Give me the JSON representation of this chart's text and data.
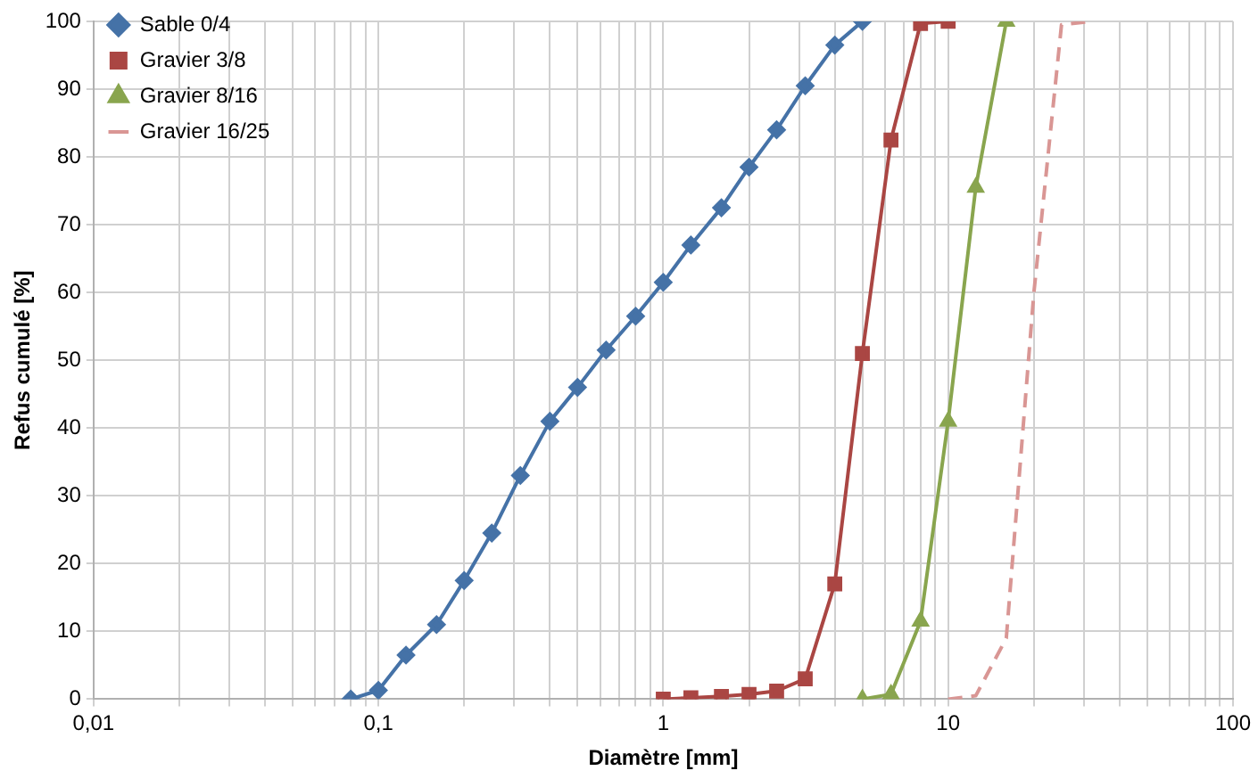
{
  "chart_data": {
    "type": "line",
    "xlabel": "Diamètre [mm]",
    "ylabel": "Refus cumulé [%]",
    "log": "x",
    "grid": true,
    "legend": "top left",
    "xlim": [
      0.01,
      100
    ],
    "ylim": [
      0,
      100
    ],
    "xticks": [
      {
        "value": 0.01,
        "label": "0,01"
      },
      {
        "value": 0.02,
        "label": null
      },
      {
        "value": 0.03,
        "label": null
      },
      {
        "value": 0.04,
        "label": null
      },
      {
        "value": 0.05,
        "label": null
      },
      {
        "value": 0.06,
        "label": null
      },
      {
        "value": 0.07,
        "label": null
      },
      {
        "value": 0.08,
        "label": null
      },
      {
        "value": 0.09,
        "label": null
      },
      {
        "value": 0.1,
        "label": "0,1"
      },
      {
        "value": 0.2,
        "label": null
      },
      {
        "value": 0.3,
        "label": null
      },
      {
        "value": 0.4,
        "label": null
      },
      {
        "value": 0.5,
        "label": null
      },
      {
        "value": 0.6,
        "label": null
      },
      {
        "value": 0.7,
        "label": null
      },
      {
        "value": 0.8,
        "label": null
      },
      {
        "value": 0.9,
        "label": null
      },
      1,
      {
        "value": 2,
        "label": null
      },
      {
        "value": 3,
        "label": null
      },
      {
        "value": 4,
        "label": null
      },
      {
        "value": 5,
        "label": null
      },
      {
        "value": 6,
        "label": null
      },
      {
        "value": 7,
        "label": null
      },
      {
        "value": 8,
        "label": null
      },
      {
        "value": 9,
        "label": null
      },
      10,
      {
        "value": 20,
        "label": null
      },
      {
        "value": 30,
        "label": null
      },
      {
        "value": 40,
        "label": null
      },
      {
        "value": 50,
        "label": null
      },
      {
        "value": 60,
        "label": null
      },
      {
        "value": 70,
        "label": null
      },
      {
        "value": 80,
        "label": null
      },
      {
        "value": 90,
        "label": null
      },
      100
    ],
    "yticks": [
      0,
      10,
      20,
      30,
      40,
      50,
      60,
      70,
      80,
      90,
      100
    ],
    "series": [
      {
        "name": "Sable 0/4",
        "color": "#4572a7",
        "marker": "diamond",
        "line_style": "solid",
        "x": [
          0.08,
          0.1,
          0.125,
          0.16,
          0.2,
          0.25,
          0.315,
          0.4,
          0.5,
          0.63,
          0.8,
          1,
          1.25,
          1.6,
          2,
          2.5,
          3.15,
          4,
          5
        ],
        "values": [
          0,
          1.3,
          6.5,
          11,
          17.5,
          24.5,
          33,
          41,
          46,
          51.5,
          56.5,
          61.5,
          67,
          72.5,
          78.5,
          84,
          90.5,
          96.5,
          100
        ]
      },
      {
        "name": "Gravier 3/8",
        "color": "#aa4643",
        "marker": "square",
        "line_style": "solid",
        "x": [
          1,
          1.25,
          1.6,
          2,
          2.5,
          3.15,
          4,
          5,
          6.3,
          8,
          10
        ],
        "values": [
          0,
          0.2,
          0.4,
          0.7,
          1.2,
          3,
          17,
          51,
          82.5,
          99.7,
          100
        ]
      },
      {
        "name": "Gravier 8/16",
        "color": "#89a54e",
        "marker": "triangle",
        "line_style": "solid",
        "x": [
          5,
          6.3,
          8,
          10,
          12.5,
          16
        ],
        "values": [
          0,
          0.7,
          11.5,
          41,
          75.5,
          100
        ]
      },
      {
        "name": "Gravier 16/25",
        "color": "#d99694",
        "marker": "none",
        "line_style": "dashed",
        "x": [
          10,
          12.5,
          16,
          20,
          25,
          31.5
        ],
        "values": [
          0,
          0.5,
          9,
          60,
          99.5,
          100
        ]
      }
    ]
  }
}
